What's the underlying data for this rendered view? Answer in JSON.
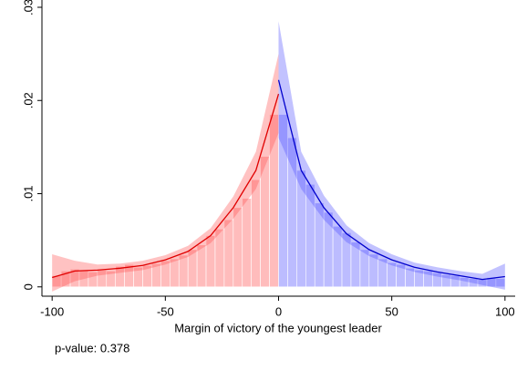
{
  "chart_data": {
    "type": "density",
    "x_label": "Margin of victory of the youngest leader",
    "annotation": "p-value: 0.378",
    "xlim": [
      -104.5,
      104.5
    ],
    "xticks": [
      -100,
      -50,
      0,
      50,
      100
    ],
    "ylim": [
      -0.001,
      0.03
    ],
    "yticks": [
      0,
      {
        "value": 0.01,
        "label": ".01"
      },
      {
        "value": 0.02,
        "label": ".02"
      },
      {
        "value": 0.03,
        "label": ".03"
      }
    ],
    "histogram": [
      {
        "color": "#ff4040",
        "bins": [
          -100,
          -96,
          -92,
          -88,
          -84,
          -80,
          -76,
          -72,
          -68,
          -64,
          -60,
          -56,
          -52,
          -48,
          -44,
          -40,
          -36,
          -32,
          -28,
          -24,
          -20,
          -16,
          -12,
          -8,
          -4,
          0
        ],
        "values": [
          0.0012,
          0.0017,
          0.0019,
          0.0018,
          0.0016,
          0.0018,
          0.0017,
          0.0022,
          0.0024,
          0.0021,
          0.0023,
          0.0025,
          0.0028,
          0.003,
          0.0034,
          0.004,
          0.0045,
          0.0055,
          0.0062,
          0.0072,
          0.0085,
          0.0095,
          0.0115,
          0.014,
          0.0185
        ]
      },
      {
        "color": "#4040ff",
        "bins": [
          0,
          4,
          8,
          12,
          16,
          20,
          24,
          28,
          32,
          36,
          40,
          44,
          48,
          52,
          56,
          60,
          64,
          68,
          72,
          76,
          80,
          84,
          88,
          92,
          96,
          100
        ],
        "values": [
          0.0185,
          0.016,
          0.0125,
          0.011,
          0.009,
          0.008,
          0.0065,
          0.0058,
          0.0048,
          0.004,
          0.0035,
          0.003,
          0.0026,
          0.0024,
          0.002,
          0.0018,
          0.0017,
          0.0015,
          0.0013,
          0.0012,
          0.001,
          0.0009,
          0.0008,
          0.001,
          0.0009
        ]
      }
    ],
    "fits": [
      {
        "color": "#e00000",
        "band_color": "#ff5050",
        "x": [
          -100,
          -90,
          -80,
          -70,
          -60,
          -50,
          -40,
          -30,
          -20,
          -10,
          0
        ],
        "values": [
          0.001,
          0.0017,
          0.0018,
          0.002,
          0.0023,
          0.0029,
          0.0038,
          0.0055,
          0.0085,
          0.0125,
          0.0207
        ],
        "upper": [
          0.0035,
          0.0028,
          0.0024,
          0.0025,
          0.0028,
          0.0034,
          0.0044,
          0.0063,
          0.0097,
          0.0145,
          0.025
        ],
        "lower": [
          -0.0005,
          0.0006,
          0.0012,
          0.0015,
          0.0018,
          0.0024,
          0.0032,
          0.0047,
          0.0073,
          0.0105,
          0.0165
        ]
      },
      {
        "color": "#0000cc",
        "band_color": "#5050ff",
        "x": [
          0,
          10,
          20,
          30,
          40,
          50,
          60,
          70,
          80,
          90,
          100
        ],
        "values": [
          0.0222,
          0.0125,
          0.0085,
          0.0057,
          0.004,
          0.0029,
          0.0021,
          0.0016,
          0.0012,
          0.0008,
          0.0011
        ],
        "upper": [
          0.0285,
          0.0145,
          0.0098,
          0.0066,
          0.0047,
          0.0035,
          0.0026,
          0.0021,
          0.0017,
          0.0014,
          0.0025
        ],
        "lower": [
          0.016,
          0.0105,
          0.0072,
          0.0048,
          0.0033,
          0.0023,
          0.0016,
          0.0011,
          0.0007,
          0.0002,
          -0.0003
        ]
      }
    ]
  }
}
